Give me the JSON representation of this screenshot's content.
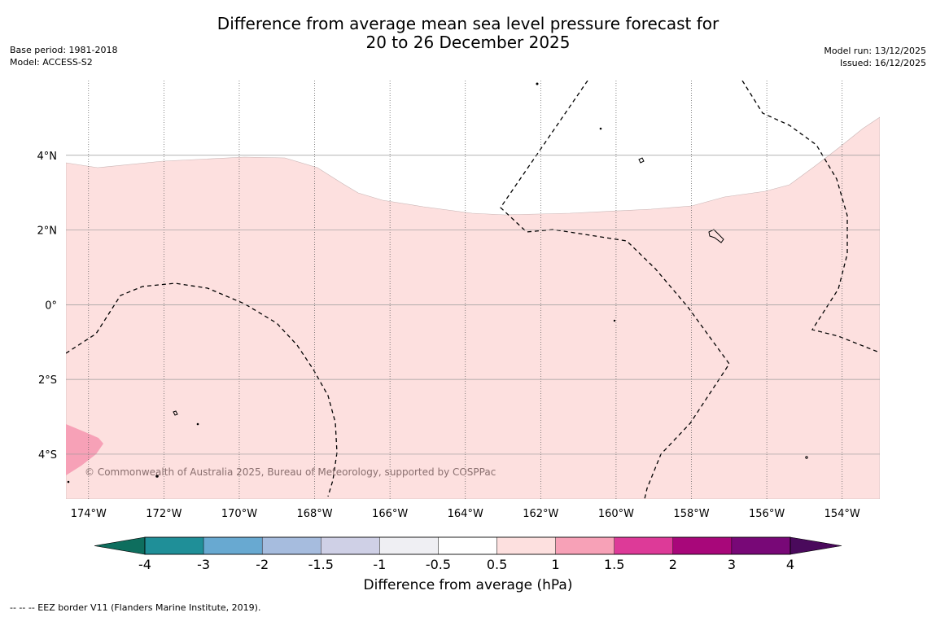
{
  "title": {
    "line1": "Difference from average mean sea level pressure forecast for",
    "line2": "20 to 26 December 2025"
  },
  "meta_left": {
    "base_period": "Base period: 1981-2018",
    "model": "Model: ACCESS-S2"
  },
  "meta_right": {
    "model_run": "Model run: 13/12/2025",
    "issued": "Issued: 16/12/2025"
  },
  "map": {
    "lon_range": [
      174.6,
      153.0
    ],
    "lat_range": [
      6.0,
      -5.2
    ],
    "lon_ticks": [
      {
        "value": 174,
        "label": "174°W"
      },
      {
        "value": 172,
        "label": "172°W"
      },
      {
        "value": 170,
        "label": "170°W"
      },
      {
        "value": 168,
        "label": "168°W"
      },
      {
        "value": 166,
        "label": "166°W"
      },
      {
        "value": 164,
        "label": "164°W"
      },
      {
        "value": 162,
        "label": "162°W"
      },
      {
        "value": 160,
        "label": "160°W"
      },
      {
        "value": 158,
        "label": "158°W"
      },
      {
        "value": 156,
        "label": "156°W"
      },
      {
        "value": 154,
        "label": "154°W"
      }
    ],
    "lat_ticks": [
      {
        "value": 4,
        "label": "4°N"
      },
      {
        "value": 2,
        "label": "2°N"
      },
      {
        "value": 0,
        "label": "0°"
      },
      {
        "value": -2,
        "label": "2°S"
      },
      {
        "value": -4,
        "label": "4°S"
      }
    ],
    "copyright": "© Commonwealth of Australia 2025, Bureau of Meteorology, supported by COSPPac",
    "fill_colors": {
      "band_0_5_to_1": "#fde0df",
      "band_1_to_1_5": "#f7a1b7",
      "ocean_neutral": "#ffffff"
    }
  },
  "colorbar": {
    "label": "Difference from average (hPa)",
    "ticks": [
      "-4",
      "-3",
      "-2",
      "-1.5",
      "-1",
      "-0.5",
      "0.5",
      "1",
      "1.5",
      "2",
      "3",
      "4"
    ],
    "colors": [
      "#0e6e5e",
      "#1f8f98",
      "#68a9d1",
      "#a6bcde",
      "#cfd0e6",
      "#efeff3",
      "#ffffff",
      "#fde0df",
      "#f7a1b7",
      "#dd3a98",
      "#a8077a",
      "#780877",
      "#4a0a5c"
    ]
  },
  "footer": "--  --  -- EEZ border V11 (Flanders Marine Institute, 2019)."
}
